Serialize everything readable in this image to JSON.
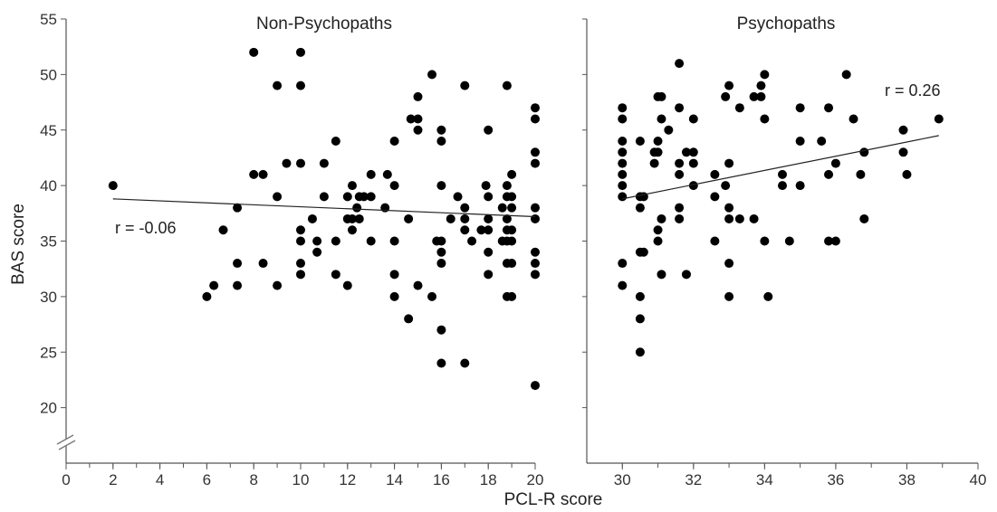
{
  "chart_data": {
    "type": "scatter",
    "ylabel": "BAS score",
    "xlabel": "PCL-R score",
    "yticks": [
      20,
      25,
      30,
      35,
      40,
      45,
      50,
      55
    ],
    "ylim": [
      15,
      55
    ],
    "y_axis_break": true,
    "panels": [
      {
        "title": "Non-Psychopaths",
        "xlim": [
          0,
          20
        ],
        "xticks": [
          0,
          2,
          4,
          6,
          8,
          10,
          12,
          14,
          16,
          18,
          20
        ],
        "annotation": "r = -0.06",
        "trend": {
          "x": [
            2,
            20
          ],
          "y": [
            38.8,
            37.2
          ]
        },
        "points": [
          [
            2,
            40
          ],
          [
            6,
            30
          ],
          [
            6.3,
            31
          ],
          [
            6.7,
            36
          ],
          [
            7.3,
            38
          ],
          [
            7.3,
            33
          ],
          [
            7.3,
            31
          ],
          [
            8,
            52
          ],
          [
            8,
            41
          ],
          [
            8.4,
            41
          ],
          [
            8.4,
            33
          ],
          [
            9,
            49
          ],
          [
            9,
            39
          ],
          [
            9,
            31
          ],
          [
            9.4,
            42
          ],
          [
            10,
            52
          ],
          [
            10,
            49
          ],
          [
            10,
            42
          ],
          [
            10,
            36
          ],
          [
            10,
            35
          ],
          [
            10,
            33
          ],
          [
            10,
            32
          ],
          [
            10.5,
            37
          ],
          [
            10.7,
            34
          ],
          [
            10.7,
            35
          ],
          [
            11,
            42
          ],
          [
            11,
            39
          ],
          [
            11.5,
            44
          ],
          [
            11.5,
            35
          ],
          [
            11.5,
            32
          ],
          [
            12,
            39
          ],
          [
            12,
            37
          ],
          [
            12,
            31
          ],
          [
            12.2,
            40
          ],
          [
            12.2,
            37
          ],
          [
            12.2,
            36
          ],
          [
            12.4,
            38
          ],
          [
            12.5,
            39
          ],
          [
            12.5,
            37
          ],
          [
            12.7,
            39
          ],
          [
            13,
            41
          ],
          [
            13,
            39
          ],
          [
            13,
            35
          ],
          [
            13.6,
            38
          ],
          [
            13.7,
            41
          ],
          [
            14,
            44
          ],
          [
            14,
            40
          ],
          [
            14,
            35
          ],
          [
            14,
            32
          ],
          [
            14,
            30
          ],
          [
            14.6,
            37
          ],
          [
            14.6,
            28
          ],
          [
            14.7,
            46
          ],
          [
            15,
            48
          ],
          [
            15,
            46
          ],
          [
            15,
            45
          ],
          [
            15,
            31
          ],
          [
            15.6,
            50
          ],
          [
            15.6,
            30
          ],
          [
            15.8,
            35
          ],
          [
            16,
            45
          ],
          [
            16,
            44
          ],
          [
            16,
            40
          ],
          [
            16,
            35
          ],
          [
            16,
            34
          ],
          [
            16,
            33
          ],
          [
            16,
            27
          ],
          [
            16,
            24
          ],
          [
            16.4,
            37
          ],
          [
            16.7,
            39
          ],
          [
            17,
            49
          ],
          [
            17,
            38
          ],
          [
            17,
            37
          ],
          [
            17,
            36
          ],
          [
            17,
            24
          ],
          [
            17.3,
            35
          ],
          [
            17.7,
            36
          ],
          [
            17.9,
            40
          ],
          [
            18,
            45
          ],
          [
            18,
            39
          ],
          [
            18,
            37
          ],
          [
            18,
            36
          ],
          [
            18,
            34
          ],
          [
            18,
            32
          ],
          [
            18.6,
            38
          ],
          [
            18.6,
            35
          ],
          [
            18.8,
            49
          ],
          [
            18.8,
            40
          ],
          [
            18.8,
            39
          ],
          [
            18.8,
            37
          ],
          [
            18.8,
            36
          ],
          [
            18.8,
            35
          ],
          [
            18.8,
            33
          ],
          [
            18.8,
            30
          ],
          [
            19,
            41
          ],
          [
            19,
            39
          ],
          [
            19,
            38
          ],
          [
            19,
            36
          ],
          [
            19,
            35
          ],
          [
            19,
            33
          ],
          [
            19,
            30
          ],
          [
            20,
            47
          ],
          [
            20,
            46
          ],
          [
            20,
            43
          ],
          [
            20,
            42
          ],
          [
            20,
            38
          ],
          [
            20,
            37
          ],
          [
            20,
            34
          ],
          [
            20,
            33
          ],
          [
            20,
            32
          ],
          [
            20,
            22
          ]
        ]
      },
      {
        "title": "Psychopaths",
        "xlim": [
          29,
          40
        ],
        "xticks": [
          30,
          32,
          34,
          36,
          38,
          40
        ],
        "annotation": "r = 0.26",
        "trend": {
          "x": [
            30,
            38.9
          ],
          "y": [
            38.8,
            44.5
          ]
        },
        "points": [
          [
            30,
            47
          ],
          [
            30,
            46
          ],
          [
            30,
            44
          ],
          [
            30,
            43
          ],
          [
            30,
            42
          ],
          [
            30,
            41
          ],
          [
            30,
            40
          ],
          [
            30,
            39
          ],
          [
            30,
            33
          ],
          [
            30,
            31
          ],
          [
            30.5,
            44
          ],
          [
            30.5,
            39
          ],
          [
            30.5,
            38
          ],
          [
            30.5,
            34
          ],
          [
            30.5,
            30
          ],
          [
            30.5,
            28
          ],
          [
            30.5,
            25
          ],
          [
            30.6,
            39
          ],
          [
            30.6,
            34
          ],
          [
            30.9,
            43
          ],
          [
            30.9,
            42
          ],
          [
            31,
            48
          ],
          [
            31,
            44
          ],
          [
            31,
            43
          ],
          [
            31,
            36
          ],
          [
            31,
            35
          ],
          [
            31.1,
            48
          ],
          [
            31.1,
            46
          ],
          [
            31.1,
            37
          ],
          [
            31.1,
            32
          ],
          [
            31.3,
            45
          ],
          [
            31.6,
            51
          ],
          [
            31.6,
            47
          ],
          [
            31.6,
            42
          ],
          [
            31.6,
            41
          ],
          [
            31.6,
            38
          ],
          [
            31.6,
            37
          ],
          [
            31.8,
            43
          ],
          [
            31.8,
            32
          ],
          [
            32,
            46
          ],
          [
            32,
            43
          ],
          [
            32,
            42
          ],
          [
            32,
            40
          ],
          [
            32.6,
            41
          ],
          [
            32.6,
            39
          ],
          [
            32.6,
            35
          ],
          [
            32.9,
            48
          ],
          [
            32.9,
            40
          ],
          [
            33,
            49
          ],
          [
            33,
            42
          ],
          [
            33,
            38
          ],
          [
            33,
            37
          ],
          [
            33,
            33
          ],
          [
            33,
            30
          ],
          [
            33.3,
            47
          ],
          [
            33.3,
            37
          ],
          [
            33.7,
            48
          ],
          [
            33.7,
            37
          ],
          [
            33.9,
            48
          ],
          [
            33.9,
            49
          ],
          [
            34,
            50
          ],
          [
            34,
            46
          ],
          [
            34,
            35
          ],
          [
            34.1,
            30
          ],
          [
            34.5,
            41
          ],
          [
            34.5,
            40
          ],
          [
            34.7,
            35
          ],
          [
            35,
            47
          ],
          [
            35,
            44
          ],
          [
            35,
            40
          ],
          [
            35.6,
            44
          ],
          [
            35.8,
            47
          ],
          [
            35.8,
            41
          ],
          [
            35.8,
            35
          ],
          [
            36,
            42
          ],
          [
            36,
            35
          ],
          [
            36.3,
            50
          ],
          [
            36.5,
            46
          ],
          [
            36.7,
            41
          ],
          [
            36.8,
            43
          ],
          [
            36.8,
            37
          ],
          [
            37.9,
            45
          ],
          [
            37.9,
            43
          ],
          [
            38,
            41
          ],
          [
            38.9,
            46
          ]
        ]
      }
    ]
  }
}
